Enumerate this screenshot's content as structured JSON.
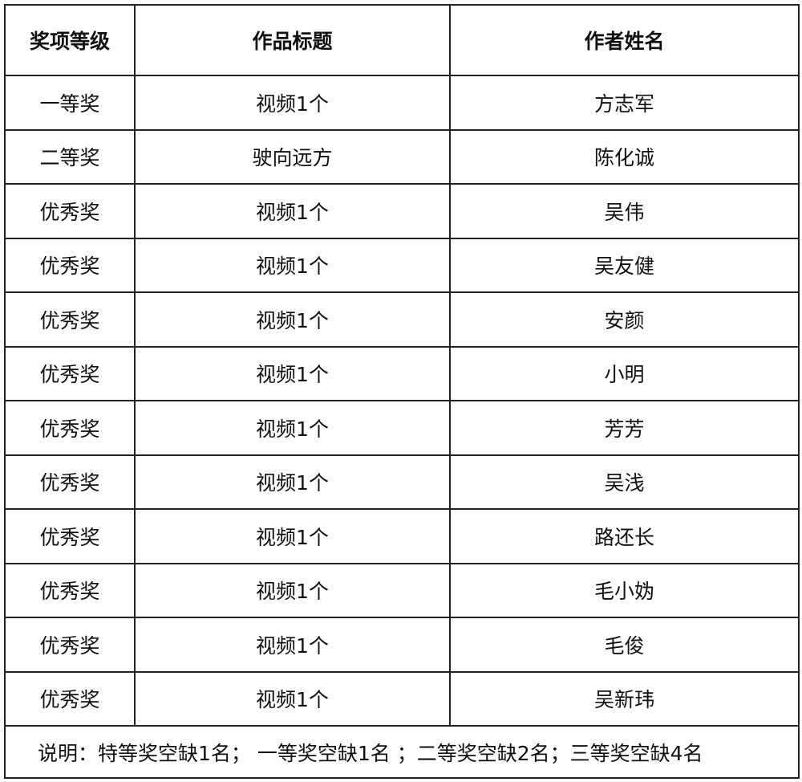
{
  "table": {
    "headers": [
      "奖项等级",
      "作品标题",
      "作者姓名"
    ],
    "rows": [
      [
        "一等奖",
        "视频1个",
        "方志军"
      ],
      [
        "二等奖",
        "驶向远方",
        "陈化诚"
      ],
      [
        "优秀奖",
        "视频1个",
        "吴伟"
      ],
      [
        "优秀奖",
        "视频1个",
        "吴友健"
      ],
      [
        "优秀奖",
        "视频1个",
        "安颜"
      ],
      [
        "优秀奖",
        "视频1个",
        "小明"
      ],
      [
        "优秀奖",
        "视频1个",
        "芳芳"
      ],
      [
        "优秀奖",
        "视频1个",
        "吴浅"
      ],
      [
        "优秀奖",
        "视频1个",
        "路还长"
      ],
      [
        "优秀奖",
        "视频1个",
        "毛小妫"
      ],
      [
        "优秀奖",
        "视频1个",
        "毛俊"
      ],
      [
        "优秀奖",
        "视频1个",
        "吴新玮"
      ]
    ],
    "note": "说明：特等奖空缺1名；  一等奖空缺1名 ；二等奖空缺2名；三等奖空缺4名"
  }
}
